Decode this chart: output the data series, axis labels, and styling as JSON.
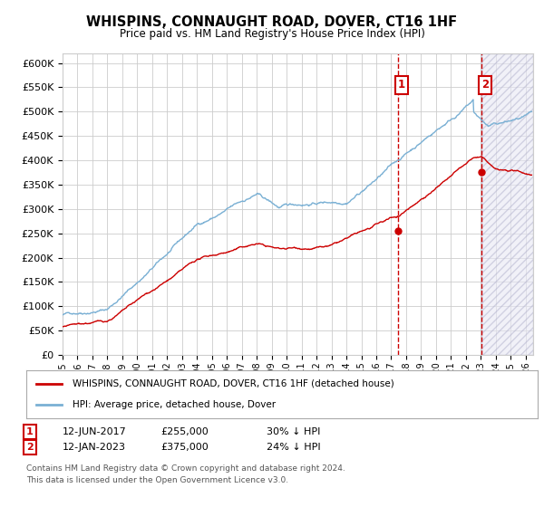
{
  "title": "WHISPINS, CONNAUGHT ROAD, DOVER, CT16 1HF",
  "subtitle": "Price paid vs. HM Land Registry's House Price Index (HPI)",
  "legend_label_red": "WHISPINS, CONNAUGHT ROAD, DOVER, CT16 1HF (detached house)",
  "legend_label_blue": "HPI: Average price, detached house, Dover",
  "annotation1": {
    "label": "1",
    "date_str": "12-JUN-2017",
    "price": 255000,
    "note": "30% ↓ HPI",
    "x_year": 2017.45
  },
  "annotation2": {
    "label": "2",
    "date_str": "12-JAN-2023",
    "price": 375000,
    "note": "24% ↓ HPI",
    "x_year": 2023.04
  },
  "footer1": "Contains HM Land Registry data © Crown copyright and database right 2024.",
  "footer2": "This data is licensed under the Open Government Licence v3.0.",
  "red_color": "#cc0000",
  "blue_color": "#7ab0d4",
  "dashed_color": "#cc0000",
  "ylim_min": 0,
  "ylim_max": 620000,
  "xmin": 1995,
  "xmax": 2026.5
}
